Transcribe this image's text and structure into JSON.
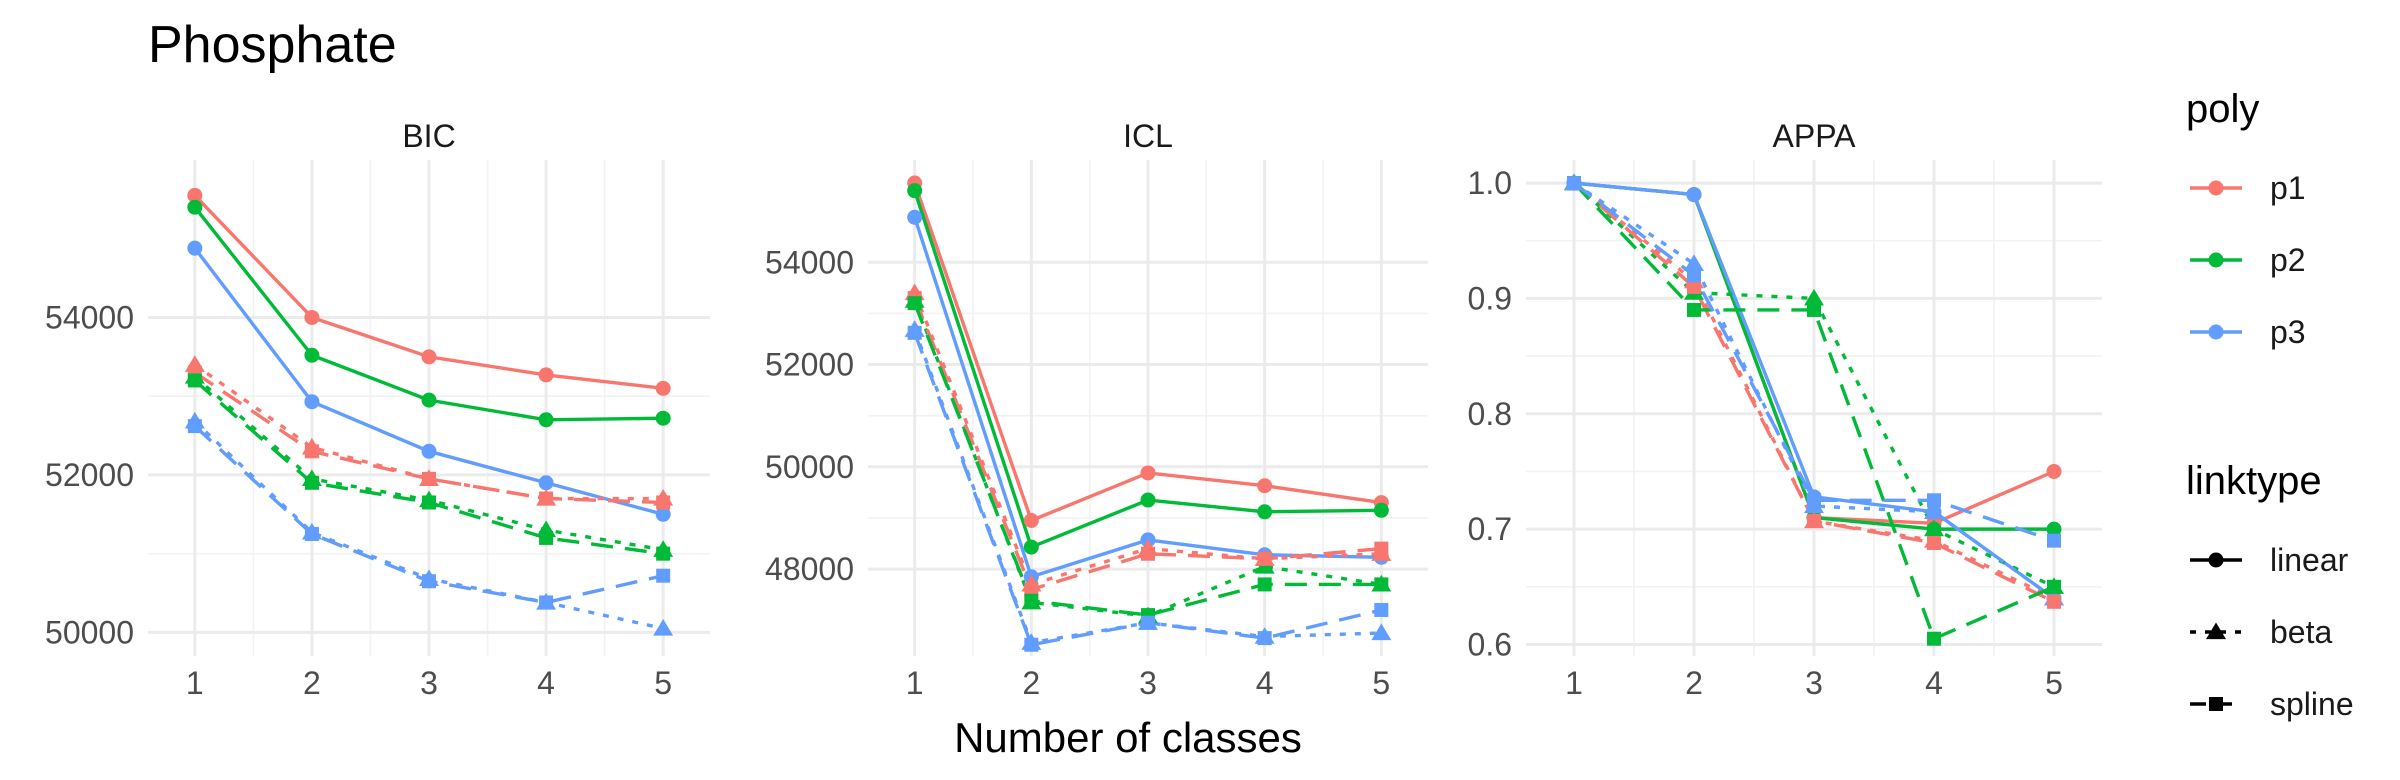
{
  "chart_data": {
    "type": "line",
    "title": "Phosphate",
    "xlabel": "Number of classes",
    "ylabel": "",
    "x": [
      1,
      2,
      3,
      4,
      5
    ],
    "grid": true,
    "legend_placement": "right",
    "legend": {
      "poly": {
        "title": "poly",
        "entries": [
          {
            "key": "p1",
            "label": "p1",
            "color": "#F8766D"
          },
          {
            "key": "p2",
            "label": "p2",
            "color": "#00BA38"
          },
          {
            "key": "p3",
            "label": "p3",
            "color": "#619CFF"
          }
        ]
      },
      "linktype": {
        "title": "linktype",
        "entries": [
          {
            "key": "linear",
            "label": "linear",
            "shape": "circle",
            "dash": "solid"
          },
          {
            "key": "beta",
            "label": "beta",
            "shape": "triangle",
            "dash": "dotted"
          },
          {
            "key": "spline",
            "label": "spline",
            "shape": "square",
            "dash": "dashed"
          }
        ]
      }
    },
    "panels": [
      {
        "name": "BIC",
        "ylim": [
          49700,
          56000
        ],
        "yticks": [
          50000,
          52000,
          54000
        ],
        "series": [
          {
            "poly": "p1",
            "linktype": "linear",
            "values": [
              55550,
              54000,
              53500,
              53270,
              53100
            ]
          },
          {
            "poly": "p2",
            "linktype": "linear",
            "values": [
              55400,
              53520,
              52950,
              52700,
              52720
            ]
          },
          {
            "poly": "p3",
            "linktype": "linear",
            "values": [
              54880,
              52930,
              52300,
              51900,
              51500
            ]
          },
          {
            "poly": "p1",
            "linktype": "beta",
            "values": [
              53400,
              52350,
              51950,
              51700,
              51700
            ]
          },
          {
            "poly": "p2",
            "linktype": "beta",
            "values": [
              53250,
              51950,
              51680,
              51300,
              51050
            ]
          },
          {
            "poly": "p3",
            "linktype": "beta",
            "values": [
              52680,
              51270,
              50680,
              50380,
              50050
            ]
          },
          {
            "poly": "p1",
            "linktype": "spline",
            "values": [
              53300,
              52300,
              51950,
              51700,
              51650
            ]
          },
          {
            "poly": "p2",
            "linktype": "spline",
            "values": [
              53200,
              51900,
              51650,
              51200,
              51000
            ]
          },
          {
            "poly": "p3",
            "linktype": "spline",
            "values": [
              52620,
              51250,
              50650,
              50380,
              50720
            ]
          }
        ]
      },
      {
        "name": "ICL",
        "ylim": [
          46300,
          56000
        ],
        "yticks": [
          48000,
          50000,
          52000,
          54000
        ],
        "series": [
          {
            "poly": "p1",
            "linktype": "linear",
            "values": [
              55550,
              48950,
              49880,
              49630,
              49300
            ]
          },
          {
            "poly": "p2",
            "linktype": "linear",
            "values": [
              55400,
              48430,
              49350,
              49120,
              49150
            ]
          },
          {
            "poly": "p3",
            "linktype": "linear",
            "values": [
              54880,
              47850,
              48570,
              48280,
              48230
            ]
          },
          {
            "poly": "p1",
            "linktype": "beta",
            "values": [
              53400,
              47700,
              48400,
              48200,
              48300
            ]
          },
          {
            "poly": "p2",
            "linktype": "beta",
            "values": [
              53250,
              47350,
              47080,
              48050,
              47700
            ]
          },
          {
            "poly": "p3",
            "linktype": "beta",
            "values": [
              52680,
              46560,
              46950,
              46680,
              46750
            ]
          },
          {
            "poly": "p1",
            "linktype": "spline",
            "values": [
              53300,
              47600,
              48300,
              48200,
              48400
            ]
          },
          {
            "poly": "p2",
            "linktype": "spline",
            "values": [
              53200,
              47380,
              47100,
              47700,
              47700
            ]
          },
          {
            "poly": "p3",
            "linktype": "spline",
            "values": [
              52620,
              46520,
              46950,
              46650,
              47200
            ]
          }
        ]
      },
      {
        "name": "APPA",
        "ylim": [
          0.59,
          1.02
        ],
        "yticks": [
          0.6,
          0.7,
          0.8,
          0.9,
          1.0
        ],
        "ytick_labels": [
          "0.6",
          "0.7",
          "0.8",
          "0.9",
          "1.0"
        ],
        "series": [
          {
            "poly": "p1",
            "linktype": "linear",
            "values": [
              1.0,
              0.99,
              0.71,
              0.705,
              0.75
            ]
          },
          {
            "poly": "p2",
            "linktype": "linear",
            "values": [
              1.0,
              0.99,
              0.71,
              0.7,
              0.7
            ]
          },
          {
            "poly": "p3",
            "linktype": "linear",
            "values": [
              1.0,
              0.99,
              0.728,
              0.715,
              0.64
            ]
          },
          {
            "poly": "p1",
            "linktype": "beta",
            "values": [
              1.0,
              0.915,
              0.707,
              0.69,
              0.64
            ]
          },
          {
            "poly": "p2",
            "linktype": "beta",
            "values": [
              1.0,
              0.905,
              0.9,
              0.7,
              0.65
            ]
          },
          {
            "poly": "p3",
            "linktype": "beta",
            "values": [
              1.0,
              0.93,
              0.72,
              0.715,
              0.64
            ]
          },
          {
            "poly": "p1",
            "linktype": "spline",
            "values": [
              1.0,
              0.91,
              0.707,
              0.688,
              0.637
            ]
          },
          {
            "poly": "p2",
            "linktype": "spline",
            "values": [
              1.0,
              0.89,
              0.89,
              0.605,
              0.65
            ]
          },
          {
            "poly": "p3",
            "linktype": "spline",
            "values": [
              1.0,
              0.92,
              0.725,
              0.725,
              0.69
            ]
          }
        ]
      }
    ]
  }
}
